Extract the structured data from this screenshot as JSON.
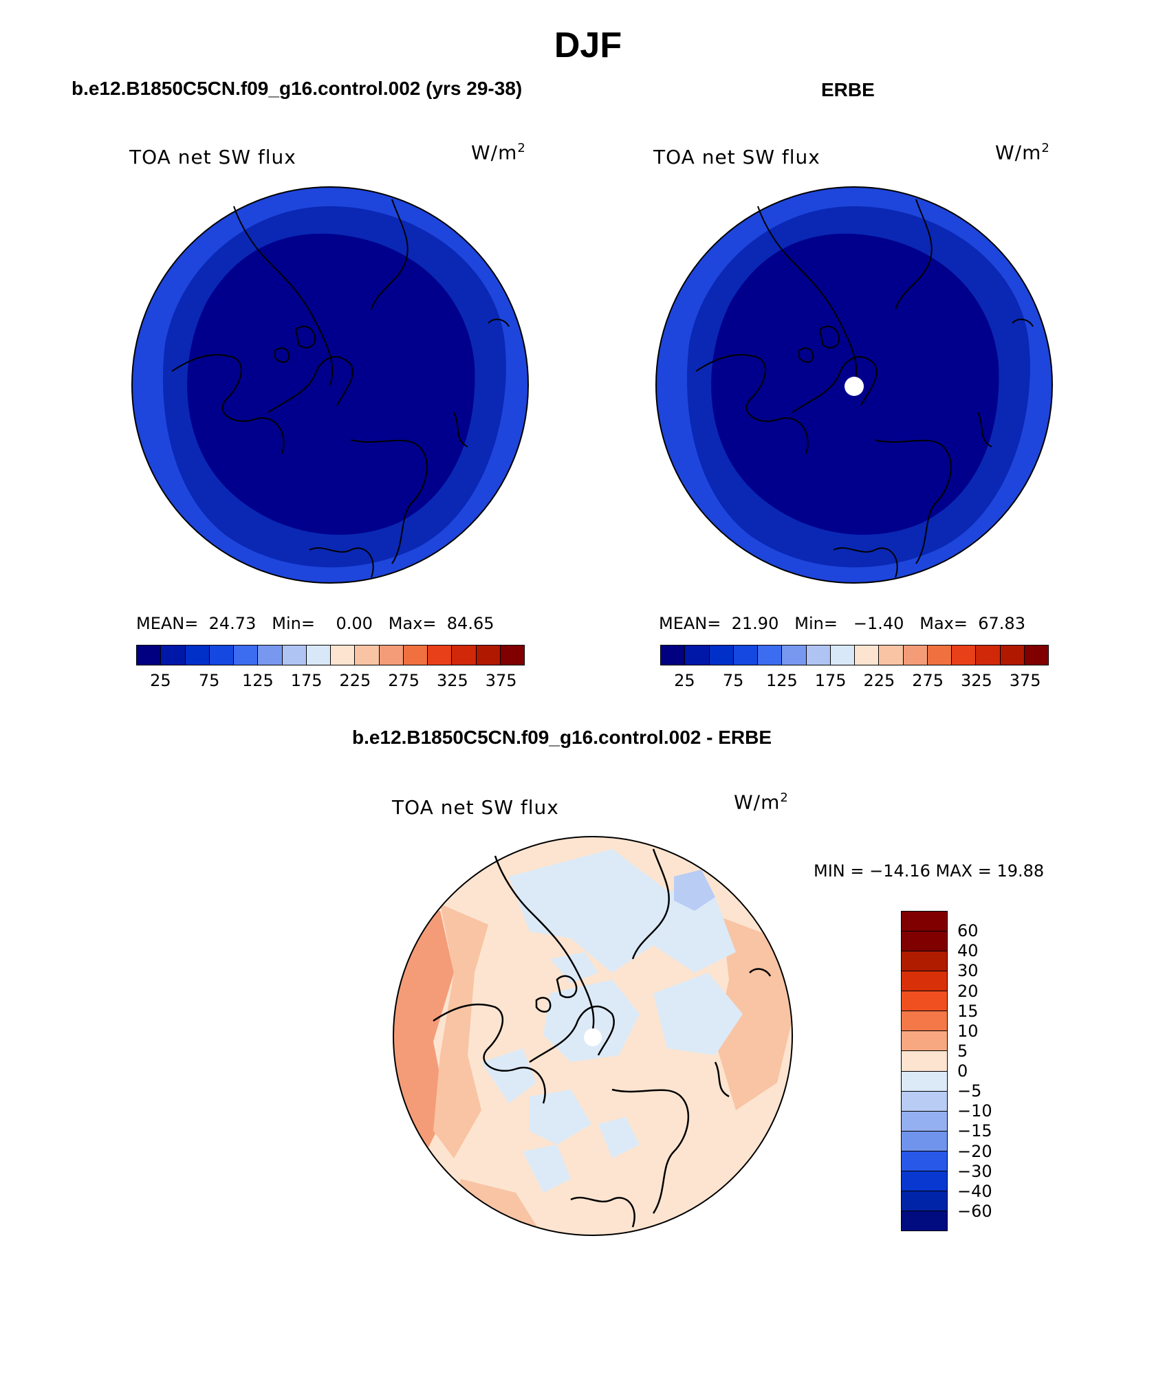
{
  "figure": {
    "season": "DJF",
    "model_title": "b.e12.B1850C5CN.f09_g16.control.002 (yrs 29-38)",
    "obs_title": "ERBE",
    "diff_title": "b.e12.B1850C5CN.f09_g16.control.002 - ERBE"
  },
  "panels": {
    "model": {
      "variable": "TOA net SW flux",
      "units_base": "W/m",
      "units_exp": "2",
      "mean_label": "MEAN=",
      "mean": "24.73",
      "min_label": "Min=",
      "min": "0.00",
      "max_label": "Max=",
      "max": "84.65"
    },
    "obs": {
      "variable": "TOA net SW flux",
      "units_base": "W/m",
      "units_exp": "2",
      "mean_label": "MEAN=",
      "mean": "21.90",
      "min_label": "Min=",
      "min": "−1.40",
      "max_label": "Max=",
      "max": "67.83"
    },
    "diff": {
      "variable": "TOA net SW flux",
      "units_base": "W/m",
      "units_exp": "2",
      "minmax_text": "MIN = −14.16 MAX =   19.88"
    }
  },
  "abs_colorbar": {
    "colors": [
      "#000080",
      "#0018a8",
      "#0030c8",
      "#1448e0",
      "#3c6cf0",
      "#7898f0",
      "#b0c4f4",
      "#d8e8f8",
      "#fce4d0",
      "#f8c4a4",
      "#f49c78",
      "#f07040",
      "#e84018",
      "#d02808",
      "#b01800",
      "#800000"
    ],
    "labels": [
      "25",
      "75",
      "125",
      "175",
      "225",
      "275",
      "325",
      "375"
    ]
  },
  "diff_colorbar": {
    "colors": [
      "#800000",
      "#b01c00",
      "#d83008",
      "#f05020",
      "#f47848",
      "#f8a880",
      "#fce4d0",
      "#dceaf8",
      "#b8ccf4",
      "#94b0f0",
      "#7094ec",
      "#2858e8",
      "#0838d0",
      "#0024a8",
      "#000c80"
    ],
    "labels": [
      "60",
      "40",
      "30",
      "20",
      "15",
      "10",
      "5",
      "0",
      "−5",
      "−10",
      "−15",
      "−20",
      "−30",
      "−40",
      "−60"
    ]
  },
  "map_colors": {
    "model_outer": "#1e46dc",
    "model_mid": "#0a28b4",
    "model_inner": "#00008c",
    "obs_outer": "#1e46dc",
    "obs_mid": "#0a28b4",
    "obs_inner": "#00008c",
    "diff_base": "#fce4d0",
    "diff_pos": "#f8c4a4",
    "diff_pos_strong": "#f49c78",
    "diff_neg": "#dceaf8",
    "diff_neg_strong": "#b8ccf4",
    "missing": "#ffffff"
  }
}
